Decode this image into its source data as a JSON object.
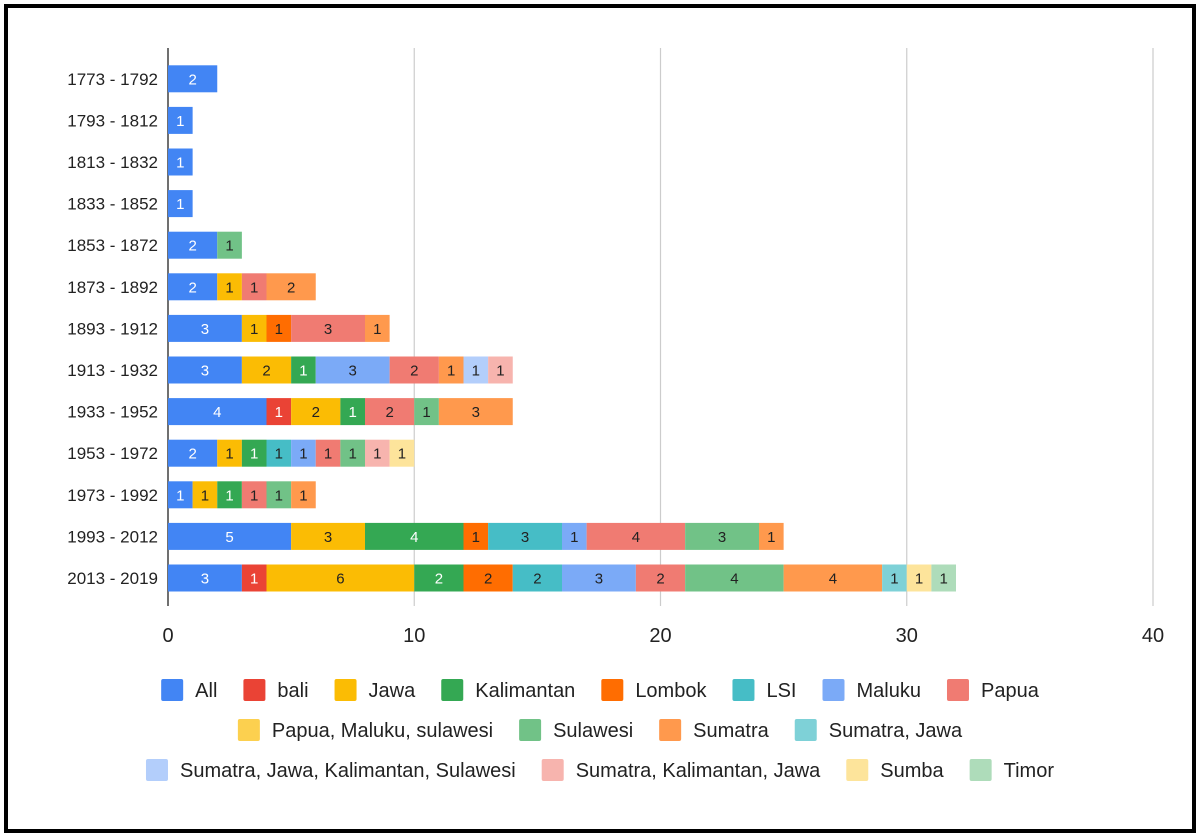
{
  "chart_data": {
    "type": "bar",
    "orientation": "horizontal",
    "stacked": true,
    "title": "",
    "xlabel": "",
    "ylabel": "",
    "xlim": [
      0,
      40
    ],
    "x_ticks": [
      0,
      10,
      20,
      30,
      40
    ],
    "grid": "vertical",
    "legend_position": "bottom",
    "categories": [
      "1773 - 1792",
      "1793 - 1812",
      "1813 - 1832",
      "1833 - 1852",
      "1853 - 1872",
      "1873 - 1892",
      "1893 - 1912",
      "1913 - 1932",
      "1933 - 1952",
      "1953 - 1972",
      "1973 - 1992",
      "1993 - 2012",
      "2013 - 2019"
    ],
    "series": [
      {
        "name": "All",
        "color": "#4285f4",
        "label_color": "#ffffff",
        "values": [
          2,
          1,
          1,
          1,
          2,
          2,
          3,
          3,
          4,
          2,
          1,
          5,
          3
        ]
      },
      {
        "name": "bali",
        "color": "#ea4335",
        "label_color": "#ffffff",
        "values": [
          0,
          0,
          0,
          0,
          0,
          0,
          0,
          0,
          1,
          0,
          0,
          0,
          1
        ]
      },
      {
        "name": "Jawa",
        "color": "#fbbc04",
        "label_color": "#222222",
        "values": [
          0,
          0,
          0,
          0,
          0,
          1,
          1,
          2,
          2,
          1,
          1,
          3,
          6
        ]
      },
      {
        "name": "Kalimantan",
        "color": "#34a853",
        "label_color": "#ffffff",
        "values": [
          0,
          0,
          0,
          0,
          0,
          0,
          0,
          1,
          1,
          1,
          1,
          4,
          2
        ]
      },
      {
        "name": "Lombok",
        "color": "#ff6d01",
        "label_color": "#222222",
        "values": [
          0,
          0,
          0,
          0,
          0,
          0,
          1,
          0,
          0,
          0,
          0,
          1,
          2
        ]
      },
      {
        "name": "LSI",
        "color": "#46bdc6",
        "label_color": "#222222",
        "values": [
          0,
          0,
          0,
          0,
          0,
          0,
          0,
          0,
          0,
          1,
          0,
          3,
          2
        ]
      },
      {
        "name": "Maluku",
        "color": "#7baaf7",
        "label_color": "#222222",
        "values": [
          0,
          0,
          0,
          0,
          0,
          0,
          0,
          3,
          0,
          1,
          0,
          1,
          3
        ]
      },
      {
        "name": "Papua",
        "color": "#f07b72",
        "label_color": "#222222",
        "values": [
          0,
          0,
          0,
          0,
          0,
          1,
          3,
          2,
          2,
          1,
          1,
          4,
          2
        ]
      },
      {
        "name": "Papua, Maluku, sulawesi",
        "color": "#fcd04f",
        "label_color": "#222222",
        "values": [
          0,
          0,
          0,
          0,
          0,
          0,
          0,
          0,
          0,
          0,
          0,
          0,
          0
        ]
      },
      {
        "name": "Sulawesi",
        "color": "#71c287",
        "label_color": "#222222",
        "values": [
          0,
          0,
          0,
          0,
          1,
          0,
          0,
          0,
          1,
          1,
          1,
          3,
          4
        ]
      },
      {
        "name": "Sumatra",
        "color": "#ff994d",
        "label_color": "#222222",
        "values": [
          0,
          0,
          0,
          0,
          0,
          2,
          1,
          1,
          3,
          0,
          1,
          1,
          4
        ]
      },
      {
        "name": "Sumatra, Jawa",
        "color": "#7ed1d7",
        "label_color": "#222222",
        "values": [
          0,
          0,
          0,
          0,
          0,
          0,
          0,
          0,
          0,
          0,
          0,
          0,
          1
        ]
      },
      {
        "name": "Sumatra, Jawa, Kalimantan, Sulawesi",
        "color": "#b3cefb",
        "label_color": "#222222",
        "values": [
          0,
          0,
          0,
          0,
          0,
          0,
          0,
          1,
          0,
          0,
          0,
          0,
          0
        ]
      },
      {
        "name": "Sumatra, Kalimantan, Jawa",
        "color": "#f7b4ae",
        "label_color": "#222222",
        "values": [
          0,
          0,
          0,
          0,
          0,
          0,
          0,
          1,
          0,
          1,
          0,
          0,
          0
        ]
      },
      {
        "name": "Sumba",
        "color": "#fde49b",
        "label_color": "#222222",
        "values": [
          0,
          0,
          0,
          0,
          0,
          0,
          0,
          0,
          0,
          1,
          0,
          0,
          1
        ]
      },
      {
        "name": "Timor",
        "color": "#aedcba",
        "label_color": "#222222",
        "values": [
          0,
          0,
          0,
          0,
          0,
          0,
          0,
          0,
          0,
          0,
          0,
          0,
          1
        ]
      }
    ]
  }
}
